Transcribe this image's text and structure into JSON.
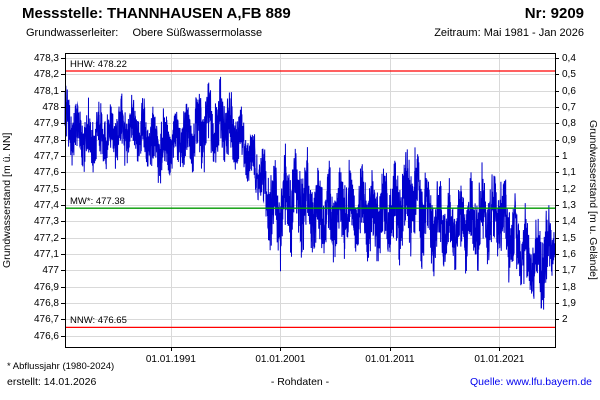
{
  "header": {
    "title": "Messstelle: THANNHAUSEN A,FB 889",
    "number": "Nr: 9209",
    "aquifer_label": "Grundwasserleiter:",
    "aquifer_value": "Obere Süßwassermolasse",
    "period": "Zeitraum: Mai 1981 - Jan 2026"
  },
  "footer": {
    "note": "* Abflussjahr (1980-2024)",
    "created": "erstellt: 14.01.2026",
    "mode": "- Rohdaten -",
    "source": "Quelle: www.lfu.bayern.de"
  },
  "chart_data": {
    "type": "line",
    "series_name": "Grundwasserstand Rohdaten",
    "ylabel_left": "Grundwasserstand [m ü. NN]",
    "ylabel_right": "Grundwasserstand [m u. Gelände]",
    "x_range": [
      1981.33,
      2026.08
    ],
    "x_ticks": [
      {
        "label": "01.01.1991",
        "year": 1991
      },
      {
        "label": "01.01.2001",
        "year": 2001
      },
      {
        "label": "01.01.2011",
        "year": 2011
      },
      {
        "label": "01.01.2021",
        "year": 2021
      }
    ],
    "y_left_range": [
      476.53,
      478.33
    ],
    "y_left_ticks": [
      {
        "label": "478,3",
        "value": 478.3
      },
      {
        "label": "478,2",
        "value": 478.2
      },
      {
        "label": "478,1",
        "value": 478.1
      },
      {
        "label": "478",
        "value": 478.0
      },
      {
        "label": "477,9",
        "value": 477.9
      },
      {
        "label": "477,8",
        "value": 477.8
      },
      {
        "label": "477,7",
        "value": 477.7
      },
      {
        "label": "477,6",
        "value": 477.6
      },
      {
        "label": "477,5",
        "value": 477.5
      },
      {
        "label": "477,4",
        "value": 477.4
      },
      {
        "label": "477,3",
        "value": 477.3
      },
      {
        "label": "477,2",
        "value": 477.2
      },
      {
        "label": "477,1",
        "value": 477.1
      },
      {
        "label": "477",
        "value": 477.0
      },
      {
        "label": "476,9",
        "value": 476.9
      },
      {
        "label": "476,8",
        "value": 476.8
      },
      {
        "label": "476,7",
        "value": 476.7
      },
      {
        "label": "476,6",
        "value": 476.6
      }
    ],
    "right_axis_offset": 478.7,
    "y_right_ticks": [
      {
        "label": "0,4",
        "value": 0.4
      },
      {
        "label": "0,5",
        "value": 0.5
      },
      {
        "label": "0,6",
        "value": 0.6
      },
      {
        "label": "0,7",
        "value": 0.7
      },
      {
        "label": "0,8",
        "value": 0.8
      },
      {
        "label": "0,9",
        "value": 0.9
      },
      {
        "label": "1",
        "value": 1.0
      },
      {
        "label": "1,1",
        "value": 1.1
      },
      {
        "label": "1,2",
        "value": 1.2
      },
      {
        "label": "1,3",
        "value": 1.3
      },
      {
        "label": "1,4",
        "value": 1.4
      },
      {
        "label": "1,5",
        "value": 1.5
      },
      {
        "label": "1,6",
        "value": 1.6
      },
      {
        "label": "1,7",
        "value": 1.7
      },
      {
        "label": "1,8",
        "value": 1.8
      },
      {
        "label": "1,9",
        "value": 1.9
      },
      {
        "label": "2",
        "value": 2.0
      }
    ],
    "reference_lines": [
      {
        "name": "HHW",
        "label": "HHW: 478.22",
        "value": 478.22,
        "color": "#ff0000"
      },
      {
        "name": "MW",
        "label": "MW*: 477.38",
        "value": 477.38,
        "color": "#009900"
      },
      {
        "name": "NNW",
        "label": "NNW: 476.65",
        "value": 476.65,
        "color": "#ff0000"
      }
    ],
    "series": {
      "color": "#0000cc",
      "envelope_points": [
        [
          1981.33,
          477.7,
          478.2
        ],
        [
          1982.0,
          477.6,
          478.1
        ],
        [
          1984.0,
          477.55,
          478.05
        ],
        [
          1986.0,
          477.6,
          478.1
        ],
        [
          1988.0,
          477.6,
          478.1
        ],
        [
          1990.0,
          477.5,
          478.0
        ],
        [
          1992.0,
          477.55,
          478.05
        ],
        [
          1994.0,
          477.6,
          478.18
        ],
        [
          1996.0,
          477.6,
          478.22
        ],
        [
          1997.0,
          477.55,
          478.1
        ],
        [
          1998.0,
          477.5,
          477.95
        ],
        [
          1999.0,
          477.35,
          477.85
        ],
        [
          2000.0,
          477.05,
          477.8
        ],
        [
          2001.0,
          476.95,
          477.7
        ],
        [
          2002.0,
          477.05,
          477.9
        ],
        [
          2003.0,
          477.0,
          477.8
        ],
        [
          2005.0,
          477.0,
          477.65
        ],
        [
          2007.0,
          477.05,
          477.75
        ],
        [
          2009.0,
          477.0,
          477.65
        ],
        [
          2011.0,
          477.0,
          477.7
        ],
        [
          2013.0,
          477.05,
          477.85
        ],
        [
          2015.0,
          476.95,
          477.6
        ],
        [
          2017.0,
          476.95,
          477.55
        ],
        [
          2019.0,
          476.95,
          477.65
        ],
        [
          2021.0,
          477.0,
          477.7
        ],
        [
          2022.0,
          476.9,
          477.55
        ],
        [
          2023.0,
          476.85,
          477.45
        ],
        [
          2024.0,
          476.7,
          477.35
        ],
        [
          2025.0,
          476.68,
          477.4
        ],
        [
          2026.08,
          477.0,
          477.45
        ]
      ]
    },
    "grid_color": "#d9d9d9",
    "border_color": "#000000"
  }
}
